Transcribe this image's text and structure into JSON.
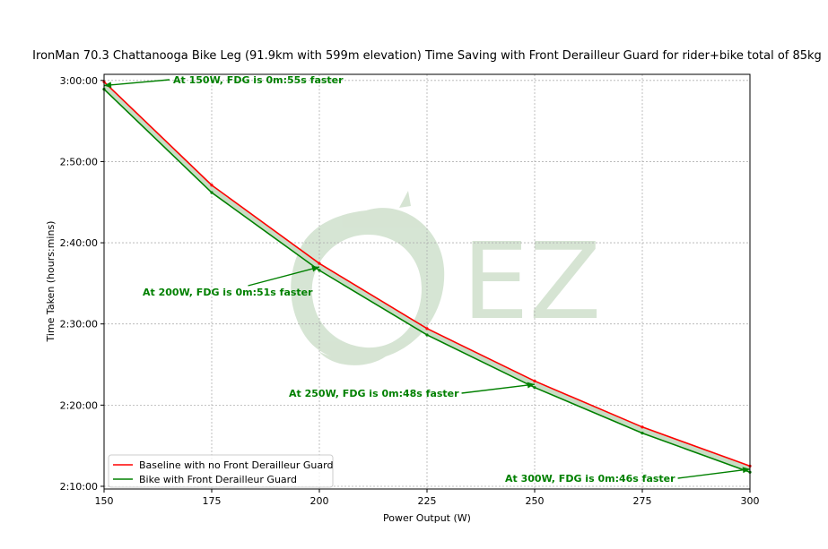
{
  "chart_data": {
    "type": "line",
    "title": "IronMan 70.3 Chattanooga Bike Leg (91.9km with 599m elevation) Time Saving with Front Derailleur Guard for rider+bike total of 85kg",
    "xlabel": "Power Output (W)",
    "ylabel": "Time Taken (hours:mins)",
    "xlim": [
      150,
      300
    ],
    "ylim_seconds": [
      7780,
      10845
    ],
    "x_ticks": [
      150,
      175,
      200,
      225,
      250,
      275,
      300
    ],
    "y_ticks": [
      {
        "seconds": 7800,
        "label": "2:10:00"
      },
      {
        "seconds": 8400,
        "label": "2:20:00"
      },
      {
        "seconds": 9000,
        "label": "2:30:00"
      },
      {
        "seconds": 9600,
        "label": "2:40:00"
      },
      {
        "seconds": 10200,
        "label": "2:50:00"
      },
      {
        "seconds": 10800,
        "label": "3:00:00"
      }
    ],
    "grid": true,
    "legend_position": "lower-left",
    "watermark_text": "EZ",
    "x": [
      150,
      175,
      200,
      225,
      250,
      275,
      300
    ],
    "series": [
      {
        "name": "Baseline with no Front Derailleur Guard",
        "color": "#ff0000",
        "values": [
          10790,
          10026,
          9447,
          8966,
          8578,
          8238,
          7950
        ]
      },
      {
        "name": "Bike with Front Derailleur Guard",
        "color": "#008000",
        "values": [
          10735,
          9971,
          9396,
          8919,
          8530,
          8193,
          7904
        ]
      }
    ],
    "fill_color": "#c8dcc4",
    "annotations": [
      {
        "text": "At 150W, FDG is 0m:55s faster",
        "x": 150,
        "y": 10762
      },
      {
        "text": "At 200W, FDG is 0m:51s faster",
        "x": 200,
        "y": 9421
      },
      {
        "text": "At 250W, FDG is 0m:48s faster",
        "x": 250,
        "y": 8554
      },
      {
        "text": "At 300W, FDG is 0m:46s faster",
        "x": 300,
        "y": 7927
      }
    ],
    "annotation_color": "#008000"
  }
}
